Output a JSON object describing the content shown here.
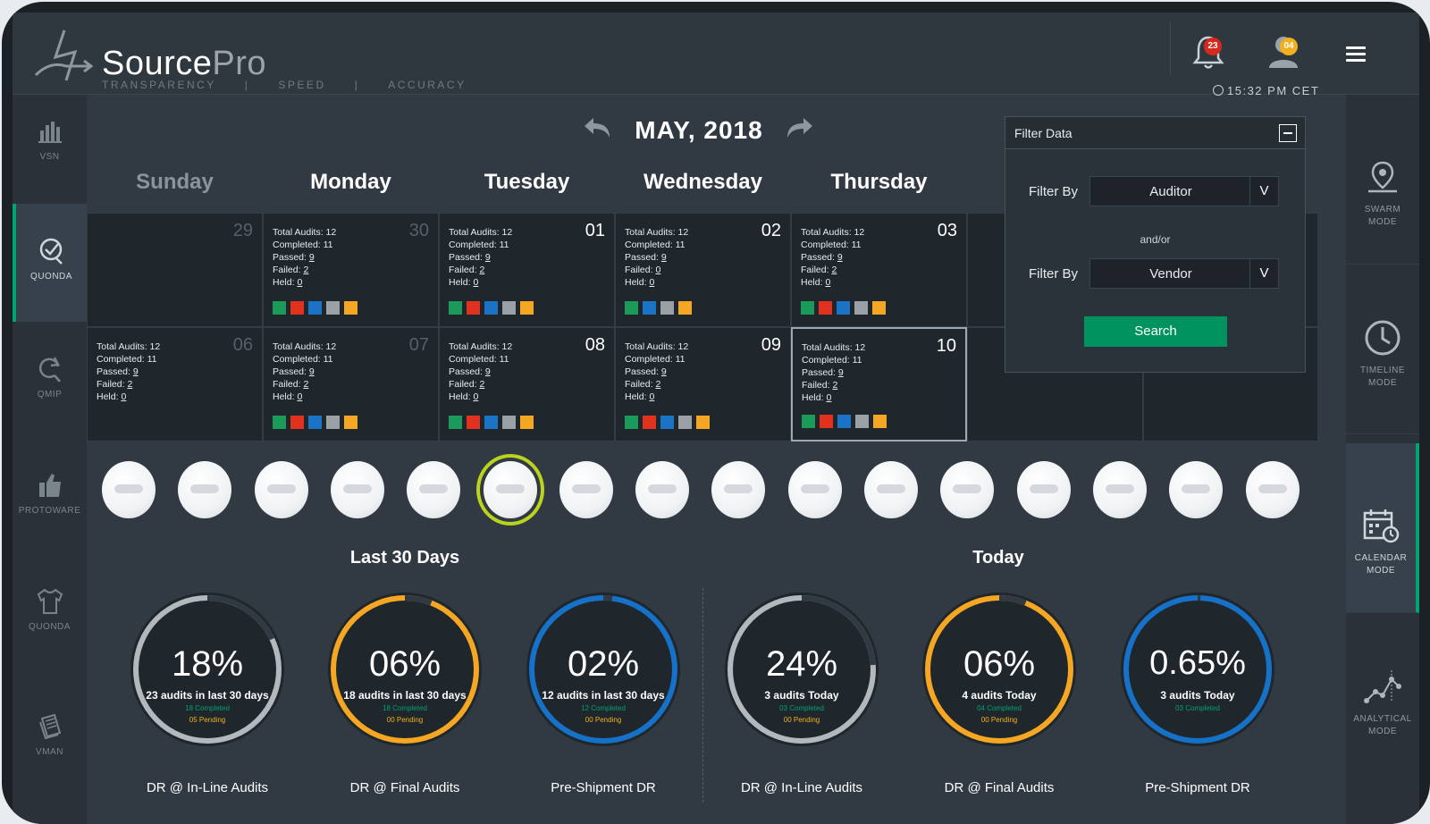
{
  "app": {
    "brand_part1": "Source",
    "brand_part2": "Pro",
    "tagline": [
      "TRANSPARENCY",
      "|",
      "SPEED",
      "|",
      "ACCURACY"
    ],
    "notifications_count": "23",
    "user_count": "04",
    "time": "15:32 PM CET"
  },
  "left_nav": [
    {
      "label": "VSN",
      "icon": "bar-chart-icon"
    },
    {
      "label": "QUONDA",
      "icon": "check-badge-icon",
      "active": true
    },
    {
      "label": "QMIP",
      "icon": "refresh-search-icon"
    },
    {
      "label": "PROTOWARE",
      "icon": "thumbs-up-icon"
    },
    {
      "label": "QUONDA",
      "icon": "tshirt-icon"
    },
    {
      "label": "VMAN",
      "icon": "document-stack-icon"
    }
  ],
  "right_nav": [
    {
      "label": "SWARM\nMODE",
      "icon": "map-pin-icon"
    },
    {
      "label": "TIMELINE\nMODE",
      "icon": "clock-icon"
    },
    {
      "label": "CALENDAR\nMODE",
      "icon": "calendar-clock-icon",
      "active": true
    },
    {
      "label": "ANALYTICAL\nMODE",
      "icon": "line-graph-icon"
    }
  ],
  "calendar": {
    "month": "MAY, 2018",
    "days": [
      "Sunday",
      "Monday",
      "Tuesday",
      "Wednesday",
      "Thursday"
    ],
    "cells": [
      {
        "num": "29",
        "dim": true,
        "empty": true
      },
      {
        "num": "30",
        "dim": true,
        "total": "Total Audits: 12",
        "completed": "Completed: 11",
        "passed": "9",
        "failed": "2",
        "held": "0"
      },
      {
        "num": "01",
        "total": "Total Audits: 12",
        "completed": "Completed: 11",
        "passed": "9",
        "failed": "2",
        "held": "0"
      },
      {
        "num": "02",
        "total": "Total Audits: 12",
        "completed": "Completed: 11",
        "passed": "9",
        "failed": "0",
        "held": "0"
      },
      {
        "num": "03",
        "total": "Total Audits: 12",
        "completed": "Completed: 11",
        "passed": "9",
        "failed": "2",
        "held": "0"
      },
      {
        "num": "06",
        "dim": true,
        "total": "Total Audits: 12",
        "completed": "Completed: 11",
        "passed": "9",
        "failed": "2",
        "held": "0",
        "noswatch": true
      },
      {
        "num": "07",
        "dim": true,
        "total": "Total Audits: 12",
        "completed": "Completed: 11",
        "passed": "9",
        "failed": "2",
        "held": "0"
      },
      {
        "num": "08",
        "total": "Total Audits: 12",
        "completed": "Completed: 11",
        "passed": "9",
        "failed": "2",
        "held": "0"
      },
      {
        "num": "09",
        "total": "Total Audits: 12",
        "completed": "Completed: 11",
        "passed": "9",
        "failed": "2",
        "held": "0"
      },
      {
        "num": "10",
        "selected": true,
        "total": "Total Audits: 12",
        "completed": "Completed: 11",
        "passed": "9",
        "failed": "2",
        "held": "0"
      }
    ],
    "passed_label": "Passed: ",
    "failed_label": "Failed: ",
    "held_label": "Held: ",
    "swatch_colors": [
      "#1b9a5a",
      "#e0321e",
      "#1a73c4",
      "#9aa0a6",
      "#f5a623"
    ],
    "swatch_colors_alt": [
      "#1b9a5a",
      "#1a73c4",
      "#9aa0a6",
      "#f5a623"
    ]
  },
  "filter": {
    "title": "Filter Data",
    "filter_by_label": "Filter By",
    "filter1_value": "Auditor",
    "and_or": "and/or",
    "filter2_value": "Vendor",
    "dropdown_glyph": "V",
    "search_label": "Search"
  },
  "brands_count": 16,
  "sections": {
    "last30": "Last 30 Days",
    "today": "Today"
  },
  "metrics": [
    {
      "pct": "18%",
      "sub": "23 audits in last 30 days",
      "completed": "18 Completed",
      "pending": "05 Pending",
      "label": "DR @ In-Line Audits",
      "color": "#b3b8bd",
      "fill": 0.18
    },
    {
      "pct": "06%",
      "sub": "18 audits in last 30 days",
      "completed": "18 Completed",
      "pending": "00 Pending",
      "label": "DR @ Final Audits",
      "color": "#f5a623",
      "fill": 0.06
    },
    {
      "pct": "02%",
      "sub": "12 audits in last 30 days",
      "completed": "12 Completed",
      "pending": "00 Pending",
      "label": "Pre-Shipment DR",
      "color": "#1672c8",
      "fill": 0.02
    },
    {
      "pct": "24%",
      "sub": "3 audits Today",
      "completed": "03 Completed",
      "pending": "00 Pending",
      "label": "DR @ In-Line Audits",
      "color": "#b3b8bd",
      "fill": 0.24
    },
    {
      "pct": "06%",
      "sub": "4 audits Today",
      "completed": "04 Completed",
      "pending": "00 Pending",
      "label": "DR @ Final Audits",
      "color": "#f5a623",
      "fill": 0.06
    },
    {
      "pct": "0.65%",
      "sub": "3 audits Today",
      "completed": "03 Completed",
      "pending": "",
      "label": "Pre-Shipment DR",
      "color": "#1672c8",
      "fill": 0.0065
    }
  ]
}
